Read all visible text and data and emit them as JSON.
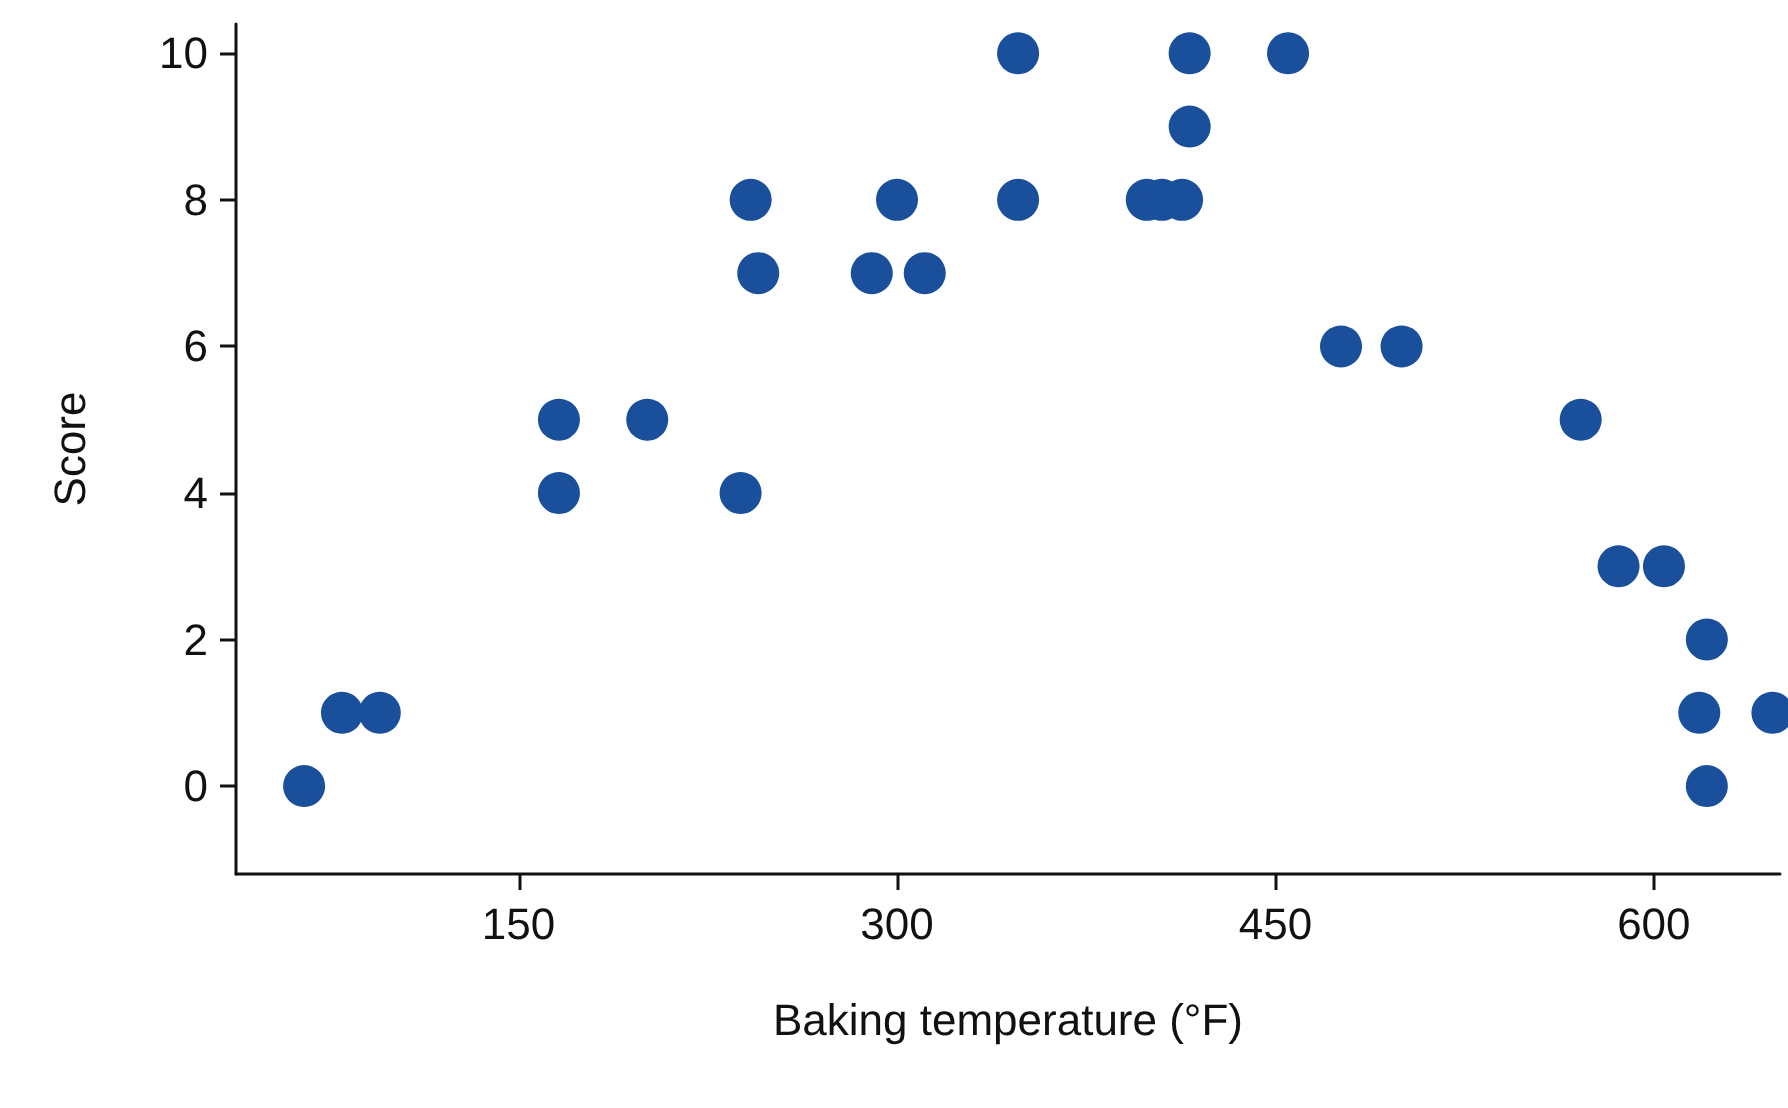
{
  "chart_data": {
    "type": "scatter",
    "xlabel": "Baking temperature (°F)",
    "ylabel": "Score",
    "x": [
      65,
      80,
      95,
      166,
      166,
      201,
      238,
      242,
      245,
      290,
      300,
      311,
      348,
      348,
      399,
      405,
      413,
      416,
      416,
      455,
      476,
      500,
      571,
      586,
      604,
      621,
      618,
      621,
      647
    ],
    "values": [
      0,
      1,
      1,
      5,
      4,
      5,
      4,
      8,
      7,
      7,
      8,
      7,
      10,
      8,
      8,
      8,
      8,
      9,
      10,
      10,
      6,
      6,
      5,
      3,
      3,
      2,
      1,
      0,
      1
    ],
    "color": "#1a4f9c",
    "marker": "circle",
    "xlim": [
      38,
      650
    ],
    "xticks": [
      150,
      300,
      450,
      600
    ],
    "ylim": [
      -1.2,
      10.4
    ],
    "yticks": [
      0,
      2,
      4,
      6,
      8,
      10
    ],
    "grid": false
  }
}
